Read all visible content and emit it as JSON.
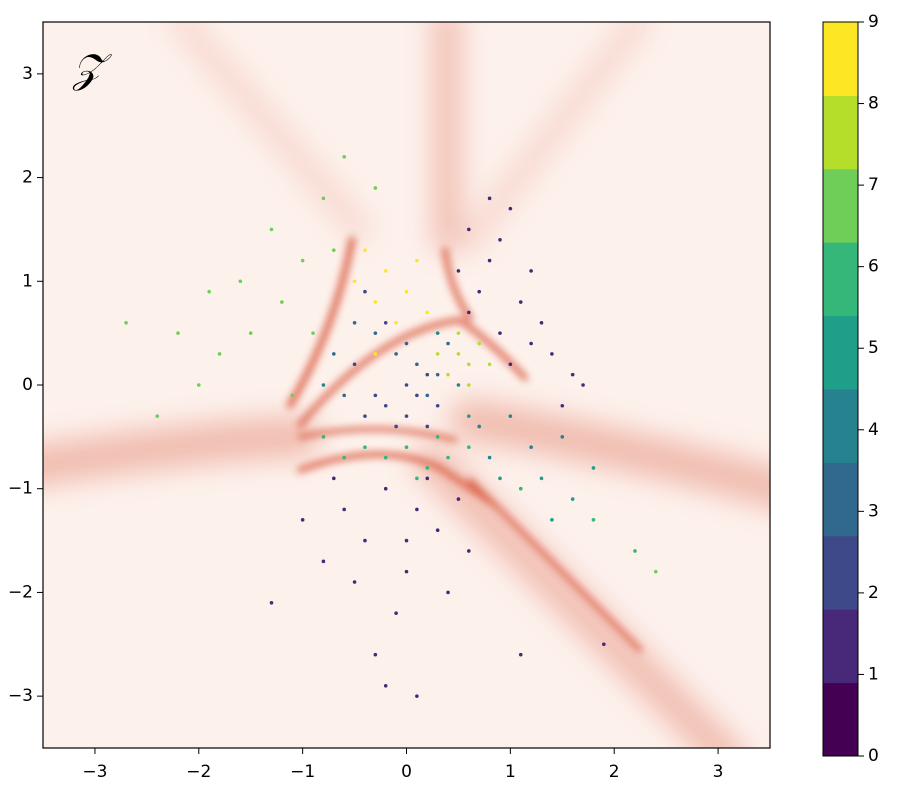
{
  "chart_data": {
    "type": "scatter",
    "annotation": "𝒵",
    "xlim": [
      -3.5,
      3.5
    ],
    "ylim": [
      -3.5,
      3.5
    ],
    "xticks": [
      {
        "value": -3,
        "label": "−3"
      },
      {
        "value": -2,
        "label": "−2"
      },
      {
        "value": -1,
        "label": "−1"
      },
      0,
      1,
      2,
      3
    ],
    "yticks": [
      {
        "value": -3,
        "label": "−3"
      },
      {
        "value": -2,
        "label": "−2"
      },
      {
        "value": -1,
        "label": "−1"
      },
      0,
      1,
      2,
      3
    ],
    "colorbar": {
      "lim": [
        0,
        9
      ],
      "ticks": [
        0,
        1,
        2,
        3,
        4,
        5,
        6,
        7,
        8,
        9
      ],
      "colors": [
        "#440154",
        "#482878",
        "#3e4989",
        "#31688e",
        "#26828e",
        "#1f9e89",
        "#35b779",
        "#6ece58",
        "#b5de2b",
        "#fde725"
      ]
    },
    "series": [
      {
        "c": 1,
        "x": [
          0.6,
          0.8,
          1.0,
          0.7,
          1.1,
          0.9,
          1.3,
          1.4,
          0.6,
          1.2,
          0.9,
          1.6,
          1.0,
          0.8,
          1.5,
          1.2,
          0.5,
          1.7,
          -0.2,
          0.1,
          -0.4,
          0.0,
          -0.6,
          0.3,
          -0.1,
          -0.8,
          0.2,
          -0.3,
          0.4,
          -0.5,
          0.0,
          -0.2,
          0.6,
          -1.0,
          1.1,
          0.1,
          -0.7,
          0.5,
          1.9,
          -1.3
        ],
        "y": [
          1.5,
          1.2,
          1.7,
          0.9,
          0.8,
          0.5,
          0.6,
          0.3,
          0.7,
          1.1,
          1.4,
          0.1,
          0.2,
          1.8,
          -0.2,
          0.4,
          1.1,
          0.0,
          -1.0,
          -1.2,
          -1.5,
          -1.8,
          -1.2,
          -1.4,
          -2.2,
          -1.7,
          -0.9,
          -2.6,
          -2.0,
          -1.9,
          -1.5,
          -2.9,
          -1.6,
          -1.3,
          -2.6,
          -3.0,
          -0.9,
          -1.1,
          -2.5,
          -2.1
        ]
      },
      {
        "c": 2,
        "x": [
          0.0,
          -0.2,
          0.2,
          -0.4,
          0.1,
          -0.1,
          0.3,
          -0.3,
          0.0,
          0.2,
          -0.5,
          -0.2,
          -0.4
        ],
        "y": [
          -0.3,
          -0.2,
          -0.4,
          -0.3,
          -0.1,
          -0.4,
          -0.2,
          -0.1,
          0.0,
          0.1,
          0.2,
          0.6,
          0.9
        ]
      },
      {
        "c": 3,
        "x": [
          0.1,
          0.3,
          -0.1,
          0.4,
          0.2,
          -0.3,
          -0.5,
          0.0,
          -0.7,
          -0.6
        ],
        "y": [
          0.2,
          0.1,
          0.3,
          0.4,
          -0.1,
          0.5,
          0.6,
          0.4,
          0.3,
          -0.1
        ]
      },
      {
        "c": 4,
        "x": [
          0.5,
          0.3,
          0.7,
          1.2,
          1.0,
          1.5,
          -0.8,
          0.8
        ],
        "y": [
          0.0,
          0.5,
          -0.4,
          -0.6,
          -0.3,
          -0.5,
          0.0,
          -0.7
        ]
      },
      {
        "c": 5,
        "x": [
          1.3,
          1.6,
          1.8,
          0.9,
          1.4,
          0.6
        ],
        "y": [
          -0.9,
          -1.1,
          -0.8,
          -0.9,
          -1.3,
          -0.3
        ]
      },
      {
        "c": 6,
        "x": [
          -0.2,
          0.0,
          0.2,
          -0.4,
          0.4,
          -0.6,
          0.1,
          0.6,
          -0.8,
          1.1,
          2.2,
          1.8,
          0.3
        ],
        "y": [
          -0.7,
          -0.6,
          -0.8,
          -0.6,
          -0.7,
          -0.7,
          -0.9,
          -0.6,
          -0.5,
          -1.0,
          -1.6,
          -1.3,
          -0.5
        ]
      },
      {
        "c": 7,
        "x": [
          -1.2,
          -1.5,
          -1.8,
          -2.0,
          -1.0,
          -0.8,
          -1.3,
          -2.2,
          -2.7,
          -1.6,
          -0.6,
          -0.9,
          -1.1,
          -0.3,
          2.4,
          -0.7,
          -1.9,
          -2.4
        ],
        "y": [
          0.8,
          0.5,
          0.3,
          0.0,
          1.2,
          1.8,
          1.5,
          0.5,
          0.6,
          1.0,
          2.2,
          0.5,
          -0.1,
          1.9,
          -1.8,
          1.3,
          0.9,
          -0.3
        ]
      },
      {
        "c": 8,
        "x": [
          0.5,
          0.6,
          0.4,
          0.7,
          0.5,
          0.8,
          0.3,
          0.6
        ],
        "y": [
          0.3,
          0.2,
          0.1,
          0.4,
          0.5,
          0.2,
          0.3,
          0.0
        ]
      },
      {
        "c": 9,
        "x": [
          -0.3,
          -0.2,
          -0.4,
          0.0,
          -0.1,
          0.1,
          -0.5,
          0.2,
          -0.3
        ],
        "y": [
          0.8,
          1.1,
          1.3,
          0.9,
          0.6,
          1.2,
          1.0,
          0.7,
          0.3
        ]
      }
    ]
  }
}
